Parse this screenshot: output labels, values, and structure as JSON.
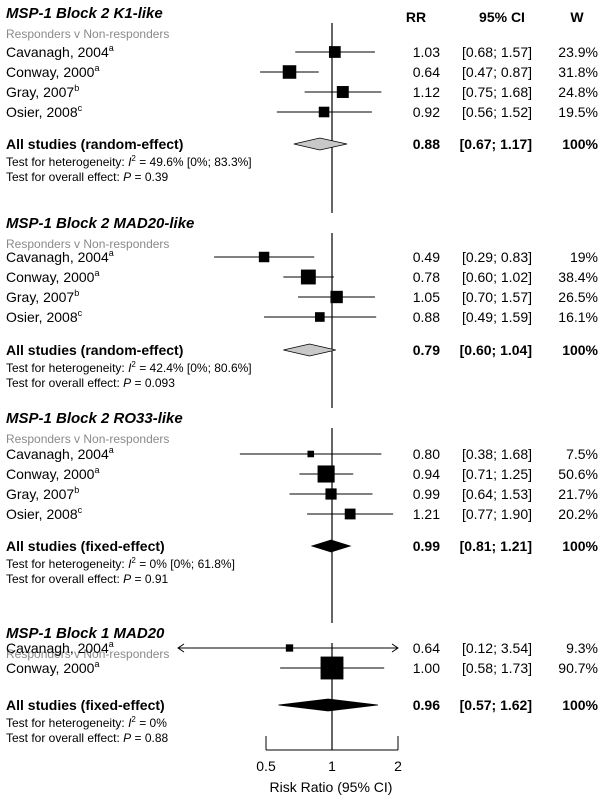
{
  "chart_data": {
    "type": "forest",
    "headers": {
      "rr": "RR",
      "ci": "95% CI",
      "w": "W"
    },
    "xlabel": "Risk Ratio (95% CI)",
    "x_scale": "log",
    "xlim": [
      0.5,
      2
    ],
    "ticks": [
      {
        "value": 0.5,
        "label": "0.5"
      },
      {
        "value": 1,
        "label": "1"
      },
      {
        "value": 2,
        "label": "2"
      }
    ],
    "groups": [
      {
        "title": "MSP-1 Block 2 K1-like",
        "subtitle": "Responders v Non-responders",
        "studies": [
          {
            "name": "Cavanagh, 2004",
            "sup": "a",
            "rr": 1.03,
            "lo": 0.68,
            "hi": 1.57,
            "rr_text": "1.03",
            "ci_text": "[0.68; 1.57]",
            "w": 23.9,
            "w_text": "23.9%"
          },
          {
            "name": "Conway, 2000",
            "sup": "a",
            "rr": 0.64,
            "lo": 0.47,
            "hi": 0.87,
            "rr_text": "0.64",
            "ci_text": "[0.47; 0.87]",
            "w": 31.8,
            "w_text": "31.8%"
          },
          {
            "name": "Gray, 2007",
            "sup": "b",
            "rr": 1.12,
            "lo": 0.75,
            "hi": 1.68,
            "rr_text": "1.12",
            "ci_text": "[0.75; 1.68]",
            "w": 24.8,
            "w_text": "24.8%"
          },
          {
            "name": "Osier, 2008",
            "sup": "c",
            "rr": 0.92,
            "lo": 0.56,
            "hi": 1.52,
            "rr_text": "0.92",
            "ci_text": "[0.56; 1.52]",
            "w": 19.5,
            "w_text": "19.5%"
          }
        ],
        "summary": {
          "label": "All studies (random-effect)",
          "rr": 0.88,
          "lo": 0.67,
          "hi": 1.17,
          "rr_text": "0.88",
          "ci_text": "[0.67; 1.17]",
          "w_text": "100%",
          "fill": "#c8c8c8"
        },
        "heterogeneity": {
          "prefix": "Test for heterogeneity: ",
          "sym": "I",
          "sup": "2",
          "rest": " = 49.6% [0%; 83.3%]"
        },
        "overall": {
          "prefix": "Test for overall effect: ",
          "sym": "P",
          "rest": " = 0.39"
        }
      },
      {
        "title": "MSP-1 Block 2 MAD20-like",
        "subtitle": "Responders v Non-responders",
        "studies": [
          {
            "name": "Cavanagh, 2004",
            "sup": "a",
            "rr": 0.49,
            "lo": 0.29,
            "hi": 0.83,
            "rr_text": "0.49",
            "ci_text": "[0.29; 0.83]",
            "w": 19,
            "w_text": "19%"
          },
          {
            "name": "Conway, 2000",
            "sup": "a",
            "rr": 0.78,
            "lo": 0.6,
            "hi": 1.02,
            "rr_text": "0.78",
            "ci_text": "[0.60; 1.02]",
            "w": 38.4,
            "w_text": "38.4%"
          },
          {
            "name": "Gray, 2007",
            "sup": "b",
            "rr": 1.05,
            "lo": 0.7,
            "hi": 1.57,
            "rr_text": "1.05",
            "ci_text": "[0.70; 1.57]",
            "w": 26.5,
            "w_text": "26.5%"
          },
          {
            "name": "Osier, 2008",
            "sup": "c",
            "rr": 0.88,
            "lo": 0.49,
            "hi": 1.59,
            "rr_text": "0.88",
            "ci_text": "[0.49; 1.59]",
            "w": 16.1,
            "w_text": "16.1%"
          }
        ],
        "summary": {
          "label": "All studies (random-effect)",
          "rr": 0.79,
          "lo": 0.6,
          "hi": 1.04,
          "rr_text": "0.79",
          "ci_text": "[0.60; 1.04]",
          "w_text": "100%",
          "fill": "#c8c8c8"
        },
        "heterogeneity": {
          "prefix": "Test for heterogeneity: ",
          "sym": "I",
          "sup": "2",
          "rest": " = 42.4% [0%; 80.6%]"
        },
        "overall": {
          "prefix": "Test for overall effect: ",
          "sym": "P",
          "rest": " = 0.093"
        }
      },
      {
        "title": "MSP-1 Block 2 RO33-like",
        "subtitle": "Responders v Non-responders",
        "studies": [
          {
            "name": "Cavanagh, 2004",
            "sup": "a",
            "rr": 0.8,
            "lo": 0.38,
            "hi": 1.68,
            "rr_text": "0.80",
            "ci_text": "[0.38; 1.68]",
            "w": 7.5,
            "w_text": "7.5%"
          },
          {
            "name": "Conway, 2000",
            "sup": "a",
            "rr": 0.94,
            "lo": 0.71,
            "hi": 1.25,
            "rr_text": "0.94",
            "ci_text": "[0.71; 1.25]",
            "w": 50.6,
            "w_text": "50.6%"
          },
          {
            "name": "Gray, 2007",
            "sup": "b",
            "rr": 0.99,
            "lo": 0.64,
            "hi": 1.53,
            "rr_text": "0.99",
            "ci_text": "[0.64; 1.53]",
            "w": 21.7,
            "w_text": "21.7%"
          },
          {
            "name": "Osier, 2008",
            "sup": "c",
            "rr": 1.21,
            "lo": 0.77,
            "hi": 1.9,
            "rr_text": "1.21",
            "ci_text": "[0.77; 1.90]",
            "w": 20.2,
            "w_text": "20.2%"
          }
        ],
        "summary": {
          "label": "All studies (fixed-effect)",
          "rr": 0.99,
          "lo": 0.81,
          "hi": 1.21,
          "rr_text": "0.99",
          "ci_text": "[0.81; 1.21]",
          "w_text": "100%",
          "fill": "#000000"
        },
        "heterogeneity": {
          "prefix": "Test for heterogeneity: ",
          "sym": "I",
          "sup": "2",
          "rest": " = 0% [0%; 61.8%]"
        },
        "overall": {
          "prefix": "Test for overall effect: ",
          "sym": "P",
          "rest": " = 0.91"
        }
      },
      {
        "title": "MSP-1 Block 1 MAD20",
        "subtitle": "Responders v Non-responders",
        "studies": [
          {
            "name": "Cavanagh, 2004",
            "sup": "a",
            "rr": 0.64,
            "lo": 0.12,
            "hi": 3.54,
            "rr_text": "0.64",
            "ci_text": "[0.12; 3.54]",
            "w": 9.3,
            "w_text": "9.3%"
          },
          {
            "name": "Conway, 2000",
            "sup": "a",
            "rr": 1.0,
            "lo": 0.58,
            "hi": 1.73,
            "rr_text": "1.00",
            "ci_text": "[0.58; 1.73]",
            "w": 90.7,
            "w_text": "90.7%"
          }
        ],
        "summary": {
          "label": "All studies (fixed-effect)",
          "rr": 0.96,
          "lo": 0.57,
          "hi": 1.62,
          "rr_text": "0.96",
          "ci_text": "[0.57; 1.62]",
          "w_text": "100%",
          "fill": "#000000"
        },
        "heterogeneity": {
          "prefix": "Test for heterogeneity: ",
          "sym": "I",
          "sup": "2",
          "rest": " = 0%"
        },
        "overall": {
          "prefix": "Test for overall effect: ",
          "sym": "P",
          "rest": " = 0.88"
        }
      }
    ]
  }
}
